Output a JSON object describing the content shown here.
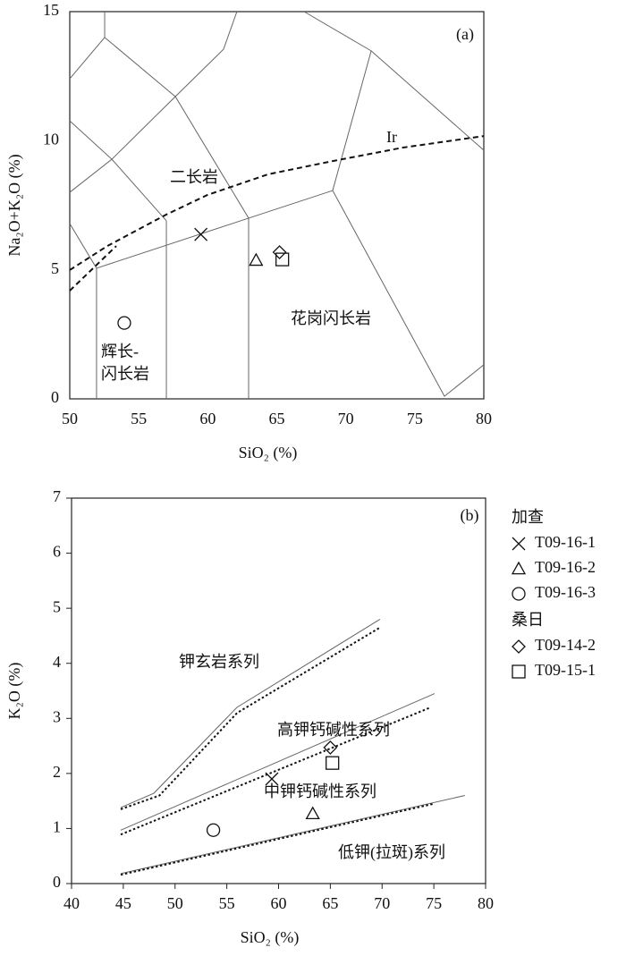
{
  "chart_data": [
    {
      "type": "scatter",
      "panel_label": "(a)",
      "x_label": "SiO₂ (%)",
      "y_label": "Na₂O+K₂O (%)",
      "xlim": [
        50,
        80
      ],
      "ylim": [
        0,
        15
      ],
      "xticks": [
        50,
        55,
        60,
        65,
        70,
        75,
        80
      ],
      "yticks": [
        0,
        5,
        10,
        15
      ],
      "tick_marks": false,
      "annotations": [
        "二长岩",
        "花岗闪长岩",
        "辉长-",
        "闪长岩",
        "Ir"
      ],
      "boundaries": [
        {
          "style": "solid",
          "x": [
            50,
            51.94
          ],
          "y": [
            6.79,
            5.06
          ]
        },
        {
          "style": "solid",
          "x": [
            51.94,
            62.96,
            69.05,
            77.15,
            80
          ],
          "y": [
            5.06,
            7.0,
            8.07,
            0.1,
            1.32
          ]
        },
        {
          "style": "solid",
          "x": [
            51.94,
            51.94
          ],
          "y": [
            5.06,
            0
          ]
        },
        {
          "style": "solid",
          "x": [
            57,
            57
          ],
          "y": [
            6.9,
            0
          ]
        },
        {
          "style": "solid",
          "x": [
            62.96,
            62.96
          ],
          "y": [
            7,
            0
          ]
        },
        {
          "style": "solid",
          "x": [
            50,
            53.05,
            57
          ],
          "y": [
            8.0,
            9.28,
            6.9
          ]
        },
        {
          "style": "solid",
          "x": [
            50,
            53.05,
            57.65,
            62.96
          ],
          "y": [
            10.77,
            9.28,
            11.71,
            7.0
          ]
        },
        {
          "style": "solid",
          "x": [
            57.65,
            61.14,
            62.11
          ],
          "y": [
            11.71,
            13.54,
            15
          ]
        },
        {
          "style": "solid",
          "x": [
            50,
            52.53,
            52.53
          ],
          "y": [
            12.4,
            14.0,
            15
          ]
        },
        {
          "style": "solid",
          "x": [
            52.53,
            57.65
          ],
          "y": [
            14.0,
            11.71
          ]
        },
        {
          "style": "solid",
          "x": [
            69.05,
            71.84,
            80
          ],
          "y": [
            8.07,
            13.48,
            9.63
          ]
        },
        {
          "style": "solid",
          "x": [
            66.98,
            71.84
          ],
          "y": [
            15,
            13.48
          ]
        },
        {
          "style": "dashed",
          "x": [
            50,
            52.72,
            57,
            59.98,
            64.38,
            69.05,
            74.1,
            80
          ],
          "y": [
            4.99,
            5.92,
            7.14,
            7.9,
            8.7,
            9.21,
            9.73,
            10.18
          ]
        },
        {
          "style": "dashed",
          "x": [
            50,
            53.37
          ],
          "y": [
            4.19,
            5.92
          ]
        }
      ],
      "series": [
        {
          "marker": "x",
          "x": [
            59.5
          ],
          "y": [
            6.37
          ]
        },
        {
          "marker": "triangle",
          "x": [
            63.5
          ],
          "y": [
            5.37
          ]
        },
        {
          "marker": "circle",
          "x": [
            53.95
          ],
          "y": [
            2.94
          ]
        },
        {
          "marker": "diamond",
          "x": [
            65.2
          ],
          "y": [
            5.68
          ]
        },
        {
          "marker": "square",
          "x": [
            65.4
          ],
          "y": [
            5.4
          ]
        }
      ]
    },
    {
      "type": "scatter",
      "panel_label": "(b)",
      "x_label": "SiO₂ (%)",
      "y_label": "K₂O (%)",
      "xlim": [
        40,
        80
      ],
      "ylim": [
        0,
        7
      ],
      "xticks": [
        40,
        45,
        50,
        55,
        60,
        65,
        70,
        75,
        80
      ],
      "yticks": [
        0,
        1,
        2,
        3,
        4,
        5,
        6,
        7
      ],
      "tick_marks": true,
      "annotations": [
        "钾玄岩系列",
        "高钾钙碱性系列",
        "中钾钙碱性系列",
        "低钾(拉斑)系列"
      ],
      "boundaries": [
        {
          "style": "solid",
          "x": [
            44.75,
            47.95,
            55.98,
            69.8
          ],
          "y": [
            1.38,
            1.64,
            3.2,
            4.8
          ]
        },
        {
          "style": "dotted",
          "x": [
            44.75,
            48.5,
            56,
            69.8
          ],
          "y": [
            1.35,
            1.6,
            3.1,
            4.65
          ]
        },
        {
          "style": "solid",
          "x": [
            44.75,
            75.07
          ],
          "y": [
            0.97,
            3.45
          ]
        },
        {
          "style": "dotted",
          "x": [
            44.75,
            74.7
          ],
          "y": [
            0.89,
            3.2
          ]
        },
        {
          "style": "solid",
          "x": [
            44.75,
            78
          ],
          "y": [
            0.18,
            1.6
          ]
        },
        {
          "style": "dotted",
          "x": [
            44.75,
            75
          ],
          "y": [
            0.16,
            1.45
          ]
        }
      ],
      "series": [
        {
          "marker": "x",
          "x": [
            59.35
          ],
          "y": [
            1.9
          ]
        },
        {
          "marker": "triangle",
          "x": [
            63.3
          ],
          "y": [
            1.27
          ]
        },
        {
          "marker": "circle",
          "x": [
            53.7
          ],
          "y": [
            0.97
          ]
        },
        {
          "marker": "diamond",
          "x": [
            65.0
          ],
          "y": [
            2.47
          ]
        },
        {
          "marker": "square",
          "x": [
            65.2
          ],
          "y": [
            2.19
          ]
        }
      ]
    }
  ],
  "legend": [
    {
      "title": "加查",
      "entries": [
        {
          "name": "T09-16-1",
          "marker": "x"
        },
        {
          "name": "T09-16-2",
          "marker": "triangle"
        },
        {
          "name": "T09-16-3",
          "marker": "circle"
        }
      ]
    },
    {
      "title": "桑日",
      "entries": [
        {
          "name": "T09-14-2",
          "marker": "diamond"
        },
        {
          "name": "T09-15-1",
          "marker": "square"
        }
      ]
    }
  ]
}
